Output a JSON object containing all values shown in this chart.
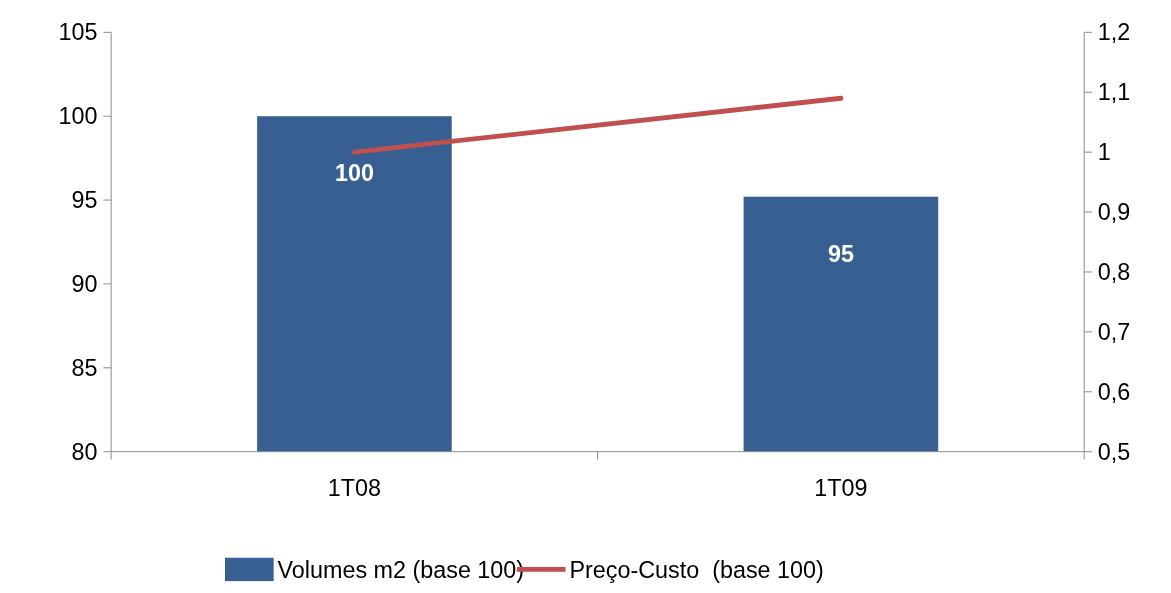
{
  "chart_data": {
    "type": "bar",
    "categories": [
      "1T08",
      "1T09"
    ],
    "series": [
      {
        "name": "Volumes m2 (base 100)",
        "color": "#375f91",
        "values": [
          100,
          95.2
        ],
        "value_labels": [
          "100",
          "95"
        ]
      },
      {
        "name": "Preço-Custo  (base 100)",
        "type": "line",
        "axis": "y2",
        "color": "#c0504d",
        "values": [
          1.0,
          1.09
        ]
      }
    ],
    "ylim": [
      80,
      105
    ],
    "yticks": [
      80,
      85,
      90,
      95,
      100,
      105
    ],
    "y2lim": [
      0.5,
      1.2
    ],
    "y2ticks": [
      {
        "value": 0.5,
        "label": "0,5"
      },
      {
        "value": 0.6,
        "label": "0,6"
      },
      {
        "value": 0.7,
        "label": "0,7"
      },
      {
        "value": 0.8,
        "label": "0,8"
      },
      {
        "value": 0.9,
        "label": "0,9"
      },
      1,
      {
        "value": 1.1,
        "label": "1,1"
      },
      {
        "value": 1.2,
        "label": "1,2"
      }
    ],
    "legend": "bottom",
    "grid": false
  }
}
